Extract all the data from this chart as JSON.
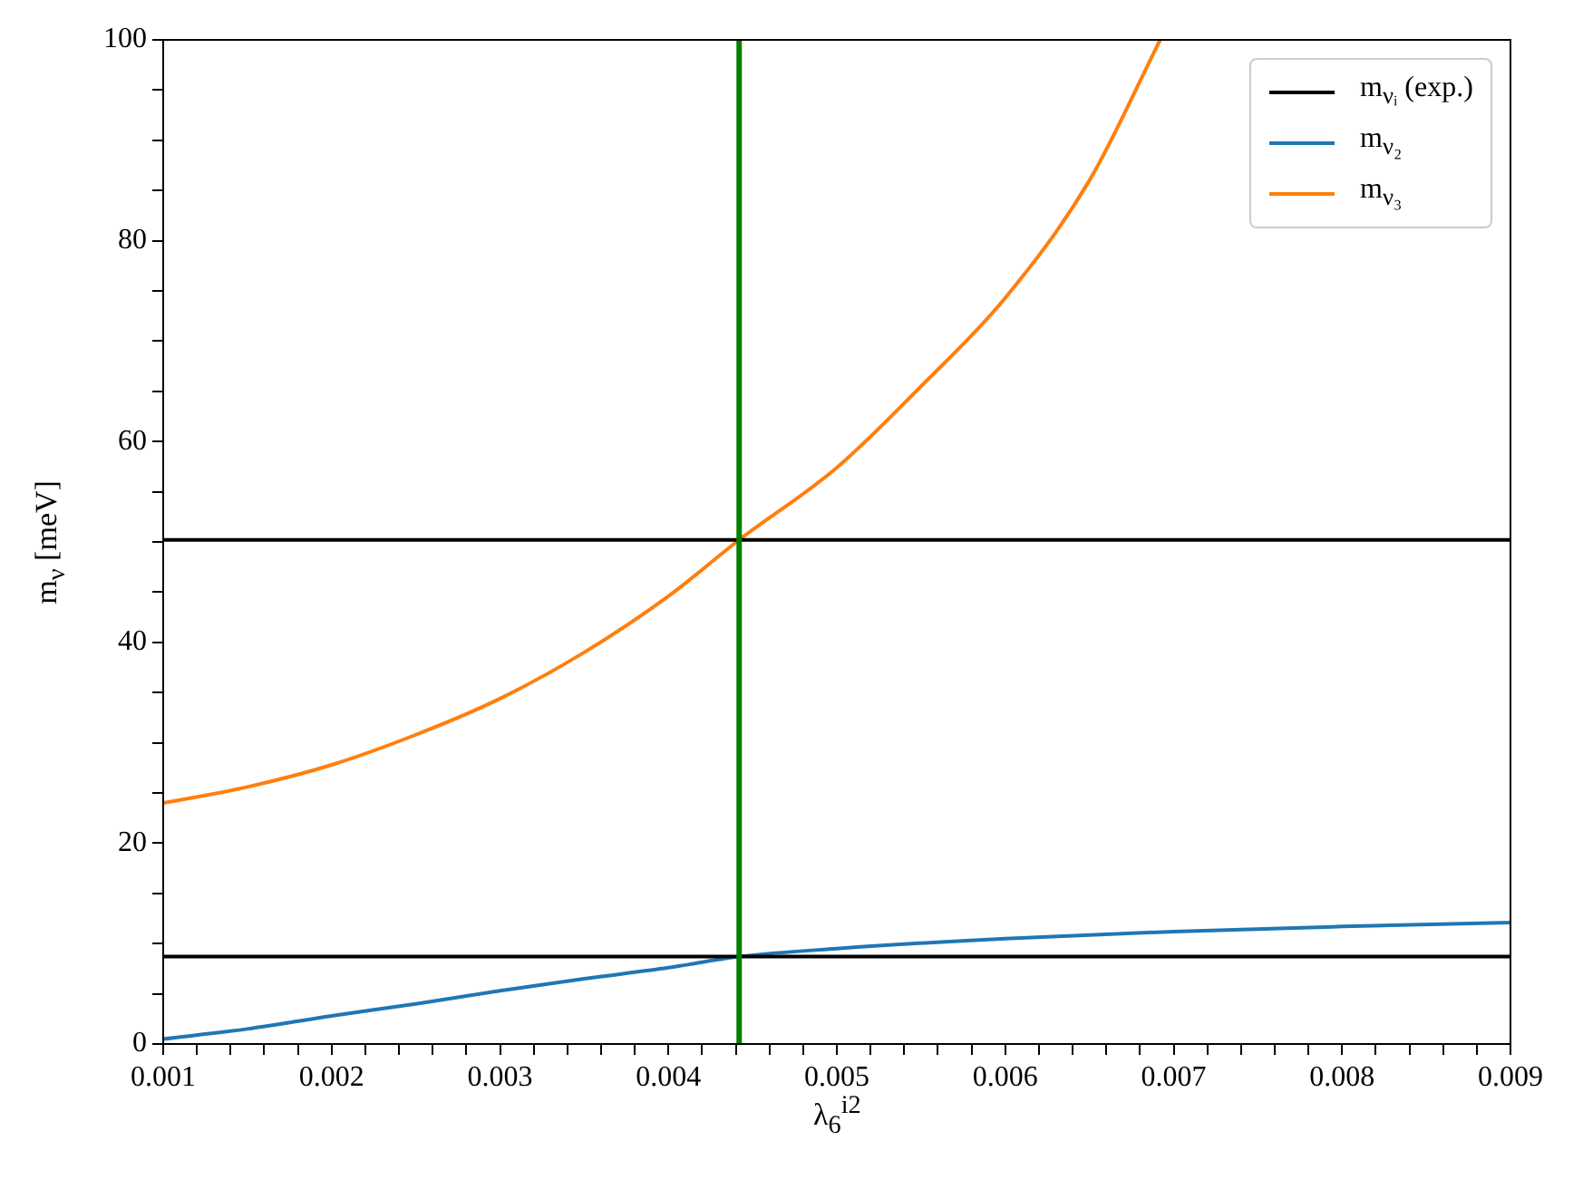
{
  "chart_data": {
    "type": "line",
    "xlabel": "λ$_{6}$$^{i2}$",
    "ylabel": "m$_{ν}$ [meV]",
    "xlim": [
      0.001,
      0.009
    ],
    "ylim": [
      0,
      100
    ],
    "xticks": [
      0.001,
      {
        "value": 0.0012,
        "label": null
      },
      {
        "value": 0.0014,
        "label": null
      },
      {
        "value": 0.0016,
        "label": null
      },
      {
        "value": 0.0018,
        "label": null
      },
      0.002,
      {
        "value": 0.0022,
        "label": null
      },
      {
        "value": 0.0024,
        "label": null
      },
      {
        "value": 0.0026,
        "label": null
      },
      {
        "value": 0.0028,
        "label": null
      },
      0.003,
      {
        "value": 0.0032,
        "label": null
      },
      {
        "value": 0.0034,
        "label": null
      },
      {
        "value": 0.0036,
        "label": null
      },
      {
        "value": 0.0038,
        "label": null
      },
      0.004,
      {
        "value": 0.0042,
        "label": null
      },
      {
        "value": 0.0044,
        "label": null
      },
      {
        "value": 0.0046,
        "label": null
      },
      {
        "value": 0.0048,
        "label": null
      },
      0.005,
      {
        "value": 0.0052,
        "label": null
      },
      {
        "value": 0.0054,
        "label": null
      },
      {
        "value": 0.0056,
        "label": null
      },
      {
        "value": 0.0058,
        "label": null
      },
      0.006,
      {
        "value": 0.0062,
        "label": null
      },
      {
        "value": 0.0064,
        "label": null
      },
      {
        "value": 0.0066,
        "label": null
      },
      {
        "value": 0.0068,
        "label": null
      },
      0.007,
      {
        "value": 0.0072,
        "label": null
      },
      {
        "value": 0.0074,
        "label": null
      },
      {
        "value": 0.0076,
        "label": null
      },
      {
        "value": 0.0078,
        "label": null
      },
      0.008,
      {
        "value": 0.0082,
        "label": null
      },
      {
        "value": 0.0084,
        "label": null
      },
      {
        "value": 0.0086,
        "label": null
      },
      {
        "value": 0.0088,
        "label": null
      },
      0.009
    ],
    "yticks": [
      0,
      {
        "value": 5,
        "label": null
      },
      {
        "value": 10,
        "label": null
      },
      {
        "value": 15,
        "label": null
      },
      20,
      {
        "value": 25,
        "label": null
      },
      {
        "value": 30,
        "label": null
      },
      {
        "value": 35,
        "label": null
      },
      40,
      {
        "value": 45,
        "label": null
      },
      {
        "value": 50,
        "label": null
      },
      {
        "value": 55,
        "label": null
      },
      60,
      {
        "value": 65,
        "label": null
      },
      {
        "value": 70,
        "label": null
      },
      {
        "value": 75,
        "label": null
      },
      80,
      {
        "value": 85,
        "label": null
      },
      {
        "value": 90,
        "label": null
      },
      {
        "value": 95,
        "label": null
      },
      100
    ],
    "series": [
      {
        "name": "m$_{νᵢ}$ (exp.)",
        "color": "#000000",
        "x": [
          0.001,
          0.009
        ],
        "values": [
          50.2,
          50.2
        ]
      },
      {
        "color": "#000000",
        "x": [
          0.001,
          0.009
        ],
        "values": [
          8.7,
          8.7
        ]
      },
      {
        "name": "m$_{ν₂}$",
        "color": "#1f77b4",
        "x": [
          0.001,
          0.0015,
          0.002,
          0.0025,
          0.003,
          0.0035,
          0.004,
          0.00442,
          0.005,
          0.006,
          0.007,
          0.008,
          0.009
        ],
        "values": [
          0.5,
          1.5,
          2.8,
          4.0,
          5.3,
          6.5,
          7.6,
          8.7,
          9.5,
          10.5,
          11.2,
          11.7,
          12.1
        ]
      },
      {
        "name": "m$_{ν₃}$",
        "color": "#ff7f0e",
        "x": [
          0.001,
          0.0015,
          0.002,
          0.0025,
          0.003,
          0.0035,
          0.004,
          0.00442,
          0.005,
          0.0055,
          0.006,
          0.0065,
          0.00692
        ],
        "values": [
          24.0,
          25.6,
          27.8,
          30.8,
          34.4,
          39.0,
          44.6,
          50.2,
          57.4,
          65.5,
          74.3,
          86.0,
          100
        ]
      }
    ],
    "ref_lines": [
      {
        "axis": "x",
        "value": 0.00442,
        "color": "#008000"
      }
    ],
    "legend": "top right",
    "grid": false,
    "marker": "none",
    "line_style": "solid"
  }
}
